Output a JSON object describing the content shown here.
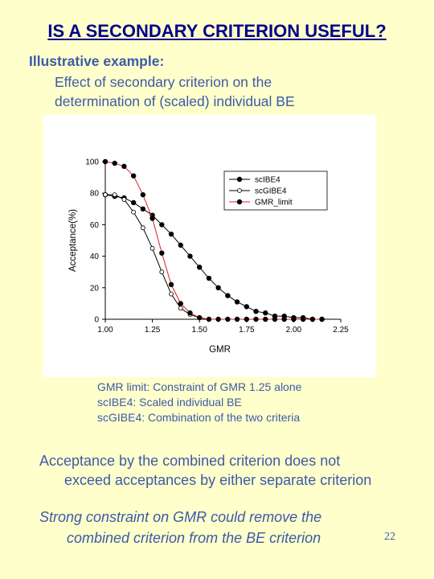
{
  "title": "IS A SECONDARY CRITERION USEFUL?",
  "subtitle": "Illustrative example:",
  "description": [
    "Effect of secondary criterion on the",
    "determination of (scaled) individual BE"
  ],
  "notes": [
    "GMR limit:  Constraint of GMR 1.25 alone",
    "scIBE4:  Scaled individual BE",
    "scGIBE4:  Combination of the two criteria"
  ],
  "paragraph1": [
    "Acceptance by the combined criterion does not",
    "exceed acceptances by either separate criterion"
  ],
  "paragraph2": [
    "Strong constraint on GMR could remove the",
    "combined criterion from the BE criterion"
  ],
  "page_number": "22",
  "colors": {
    "background": "#ffffcc",
    "title": "#00008b",
    "text": "#3c5aa8",
    "gmr_limit_line": "#e02020",
    "series_line": "#000000"
  },
  "chart_data": {
    "type": "line",
    "xlabel": "GMR",
    "ylabel": "Acceptance(%)",
    "xlim": [
      1.0,
      2.25
    ],
    "ylim": [
      0,
      100
    ],
    "xticks": [
      "1.00",
      "1.25",
      "1.50",
      "1.75",
      "2.00",
      "2.25"
    ],
    "yticks": [
      "0",
      "20",
      "40",
      "60",
      "80",
      "100"
    ],
    "legend_position": "top-right",
    "grid": false,
    "series": [
      {
        "name": "scIBE4",
        "marker": "filled-circle",
        "x": [
          1.0,
          1.05,
          1.1,
          1.15,
          1.2,
          1.25,
          1.3,
          1.35,
          1.4,
          1.45,
          1.5,
          1.55,
          1.6,
          1.65,
          1.7,
          1.75,
          1.8,
          1.85,
          1.9,
          1.95,
          2.0,
          2.05,
          2.1,
          2.15
        ],
        "y": [
          79,
          78,
          77,
          74,
          70,
          66,
          60,
          54,
          47,
          40,
          33,
          26,
          20,
          15,
          11,
          8,
          5,
          4,
          2,
          2,
          1,
          1,
          0,
          0
        ]
      },
      {
        "name": "scGIBE4",
        "marker": "open-circle",
        "x": [
          1.0,
          1.05,
          1.1,
          1.15,
          1.2,
          1.25,
          1.3,
          1.35,
          1.4,
          1.45,
          1.5,
          1.55,
          1.6,
          1.65,
          1.7,
          1.75,
          1.8,
          1.85,
          1.9,
          1.95,
          2.0,
          2.05,
          2.1,
          2.15
        ],
        "y": [
          79,
          79,
          76,
          68,
          58,
          45,
          30,
          16,
          7,
          3,
          1,
          0,
          0,
          0,
          0,
          0,
          0,
          0,
          0,
          0,
          0,
          0,
          0,
          0
        ]
      },
      {
        "name": "GMR_limit",
        "marker": "filled-circle",
        "line_color": "#e02020",
        "x": [
          1.0,
          1.05,
          1.1,
          1.15,
          1.2,
          1.25,
          1.3,
          1.35,
          1.4,
          1.45,
          1.5,
          1.55,
          1.6,
          1.65,
          1.7,
          1.75,
          1.8,
          1.85,
          1.9,
          1.95,
          2.0,
          2.05,
          2.1,
          2.15
        ],
        "y": [
          100,
          99,
          97,
          91,
          79,
          64,
          42,
          22,
          10,
          4,
          1,
          0,
          0,
          0,
          0,
          0,
          0,
          0,
          0,
          0,
          0,
          0,
          0,
          0
        ]
      }
    ]
  }
}
